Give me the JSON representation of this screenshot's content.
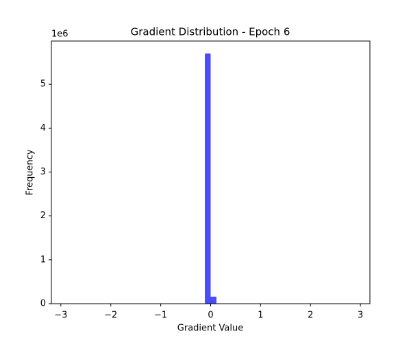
{
  "chart_data": {
    "type": "histogram",
    "title": "Gradient Distribution - Epoch 6",
    "xlabel": "Gradient Value",
    "ylabel": "Frequency",
    "y_offset_label": "1e6",
    "color": "#4b4bff",
    "bins": [
      -2.9,
      -2.784,
      -2.668,
      -2.552,
      -2.436,
      -2.32,
      -2.204,
      -2.088,
      -1.972,
      -1.856,
      -1.74,
      -1.624,
      -1.508,
      -1.392,
      -1.276,
      -1.16,
      -1.044,
      -0.928,
      -0.812,
      -0.696,
      -0.58,
      -0.464,
      -0.348,
      -0.232,
      -0.116,
      0,
      0.116,
      0.232,
      0.348,
      0.464,
      0.58,
      0.696,
      0.812,
      0.928,
      1.044,
      1.16,
      1.276,
      1.392,
      1.508,
      1.624,
      1.74,
      1.856,
      1.972,
      2.088,
      2.204,
      2.32,
      2.436,
      2.552,
      2.668,
      2.784,
      2.9
    ],
    "values": [
      0,
      0,
      0,
      0,
      0,
      0,
      0,
      0,
      0,
      0,
      0,
      0,
      0,
      0,
      0,
      0,
      0,
      0,
      0,
      0,
      0,
      0,
      0,
      0,
      5700000,
      160000,
      0,
      0,
      0,
      0,
      0,
      0,
      0,
      0,
      0,
      0,
      0,
      0,
      0,
      0,
      0,
      0,
      0,
      0,
      0,
      0,
      0,
      0,
      0,
      0
    ],
    "xlim": [
      -3.19,
      3.19
    ],
    "xticks": [
      {
        "value": -3,
        "label": "−3"
      },
      {
        "value": -2,
        "label": "−2"
      },
      {
        "value": -1,
        "label": "−1"
      },
      0,
      1,
      2,
      3
    ],
    "ylim": [
      0,
      5985000
    ],
    "yticks": [
      {
        "value": 0,
        "label": "0"
      },
      {
        "value": 1000000,
        "label": "1"
      },
      {
        "value": 2000000,
        "label": "2"
      },
      {
        "value": 3000000,
        "label": "3"
      },
      {
        "value": 4000000,
        "label": "4"
      },
      {
        "value": 5000000,
        "label": "5"
      }
    ]
  }
}
